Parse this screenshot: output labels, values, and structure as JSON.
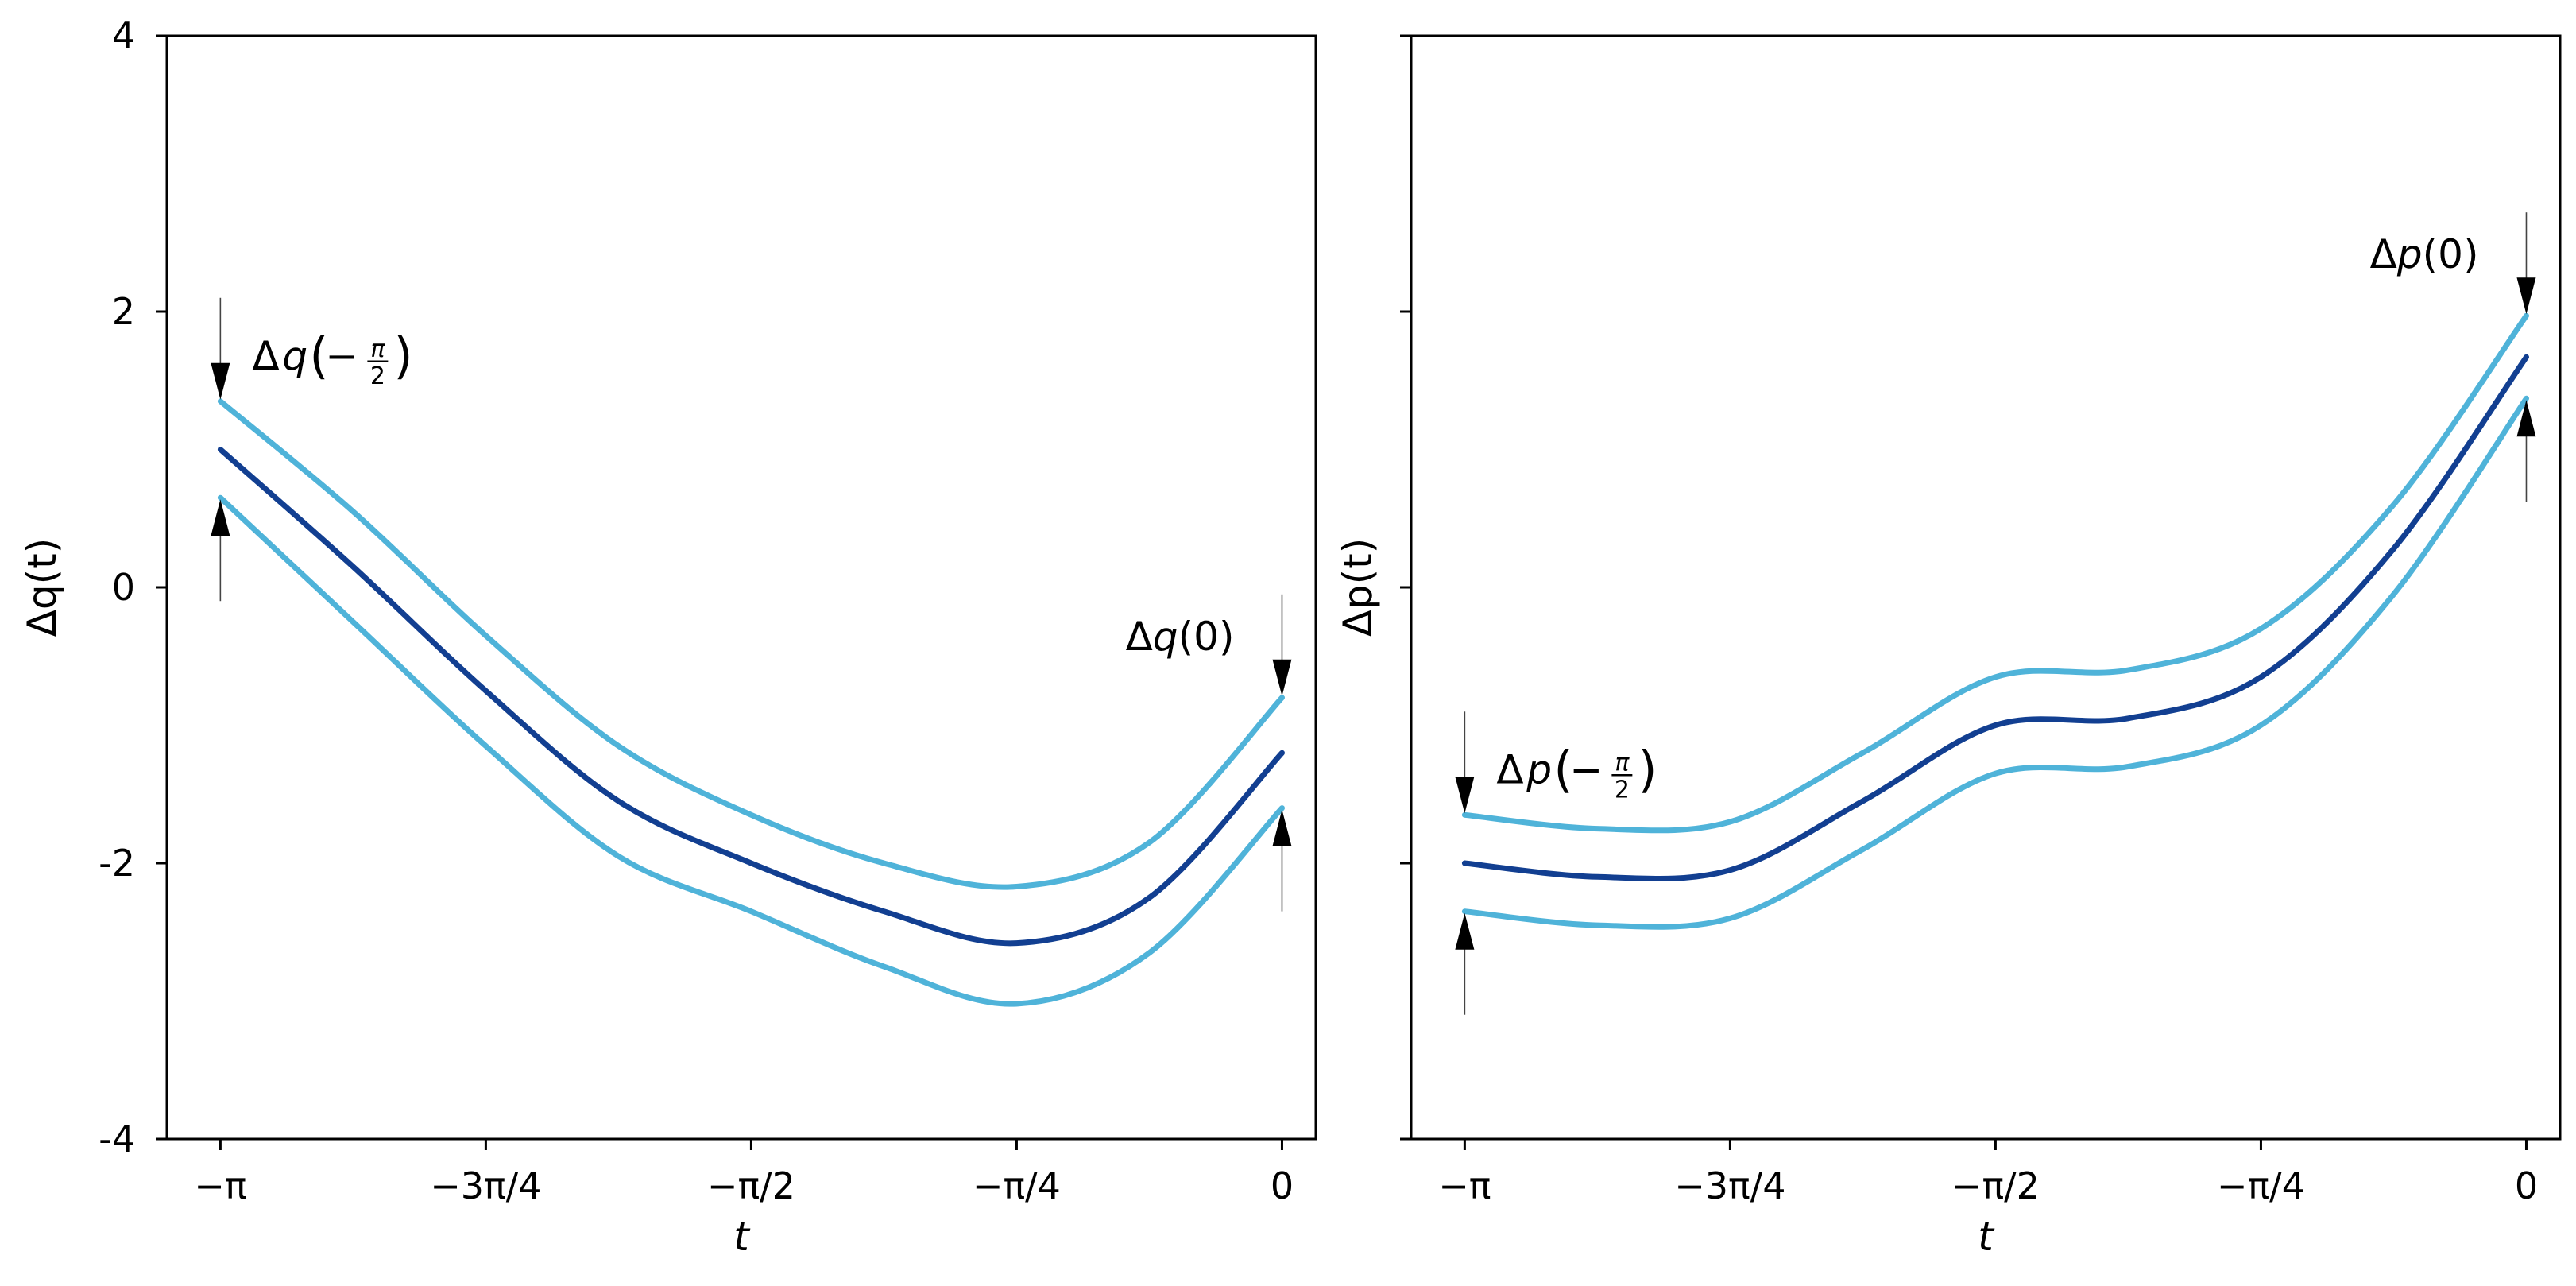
{
  "chart_data": [
    {
      "type": "line",
      "name": "delta-q",
      "xlabel": "t",
      "ylabel": "Δq(t)",
      "xlim": [
        -3.3,
        0.1
      ],
      "ylim": [
        -4,
        4
      ],
      "x_ticks": [
        -3.14159,
        -2.35619,
        -1.5708,
        -0.7854,
        0
      ],
      "x_tick_labels": [
        "−π",
        "−3π/4",
        "−π/2",
        "−π/4",
        "0"
      ],
      "y_ticks": [
        4,
        2,
        0,
        -2,
        -4
      ],
      "y_tick_labels": [
        "4",
        "2",
        "0",
        "-2",
        "-4"
      ],
      "x": [
        -3.14159,
        -2.74889,
        -2.35619,
        -1.9635,
        -1.5708,
        -1.1781,
        -0.7854,
        -0.3927,
        0
      ],
      "series": [
        {
          "name": "upper",
          "color": "#4fb3d9",
          "values": [
            1.35,
            0.55,
            -0.35,
            -1.15,
            -1.65,
            -2.0,
            -2.17,
            -1.85,
            -0.8
          ]
        },
        {
          "name": "center",
          "color": "#123f91",
          "values": [
            1.0,
            0.15,
            -0.75,
            -1.55,
            -2.0,
            -2.35,
            -2.58,
            -2.25,
            -1.2
          ]
        },
        {
          "name": "lower",
          "color": "#4fb3d9",
          "values": [
            0.65,
            -0.25,
            -1.15,
            -1.95,
            -2.35,
            -2.75,
            -3.02,
            -2.65,
            -1.6
          ]
        }
      ],
      "annotations": [
        {
          "id": "start",
          "prefix": "Δ",
          "var": "q",
          "arg_prefix": "−",
          "arg_num": "π",
          "arg_den": "2",
          "x": -3.14159,
          "y_top": 1.35,
          "y_bottom": 0.65
        },
        {
          "id": "end",
          "prefix": "Δ",
          "var": "q",
          "arg": "(0)",
          "x": 0,
          "y_top": -0.8,
          "y_bottom": -1.6
        }
      ]
    },
    {
      "type": "line",
      "name": "delta-p",
      "xlabel": "t",
      "ylabel": "Δp(t)",
      "xlim": [
        -3.3,
        0.1
      ],
      "ylim": [
        -4,
        4
      ],
      "x_ticks": [
        -3.14159,
        -2.35619,
        -1.5708,
        -0.7854,
        0
      ],
      "x_tick_labels": [
        "−π",
        "−3π/4",
        "−π/2",
        "−π/4",
        "0"
      ],
      "y_ticks": [
        4,
        2,
        0,
        -2,
        -4
      ],
      "y_tick_labels": [
        "",
        "",
        "",
        "",
        ""
      ],
      "x": [
        -3.14159,
        -2.74889,
        -2.35619,
        -1.9635,
        -1.5708,
        -1.1781,
        -0.7854,
        -0.3927,
        0
      ],
      "series": [
        {
          "name": "upper",
          "color": "#4fb3d9",
          "values": [
            -1.65,
            -1.75,
            -1.7,
            -1.2,
            -0.65,
            -0.6,
            -0.3,
            0.6,
            1.97
          ]
        },
        {
          "name": "center",
          "color": "#123f91",
          "values": [
            -2.0,
            -2.1,
            -2.05,
            -1.55,
            -1.0,
            -0.95,
            -0.65,
            0.28,
            1.67
          ]
        },
        {
          "name": "lower",
          "color": "#4fb3d9",
          "values": [
            -2.35,
            -2.45,
            -2.4,
            -1.9,
            -1.35,
            -1.3,
            -1.0,
            -0.05,
            1.37
          ]
        }
      ],
      "annotations": [
        {
          "id": "start",
          "prefix": "Δ",
          "var": "p",
          "arg_prefix": "−",
          "arg_num": "π",
          "arg_den": "2",
          "x": -3.14159,
          "y_top": -1.65,
          "y_bottom": -2.35
        },
        {
          "id": "end",
          "prefix": "Δ",
          "var": "p",
          "arg": "(0)",
          "x": 0,
          "y_top": 1.97,
          "y_bottom": 1.37
        }
      ]
    }
  ]
}
